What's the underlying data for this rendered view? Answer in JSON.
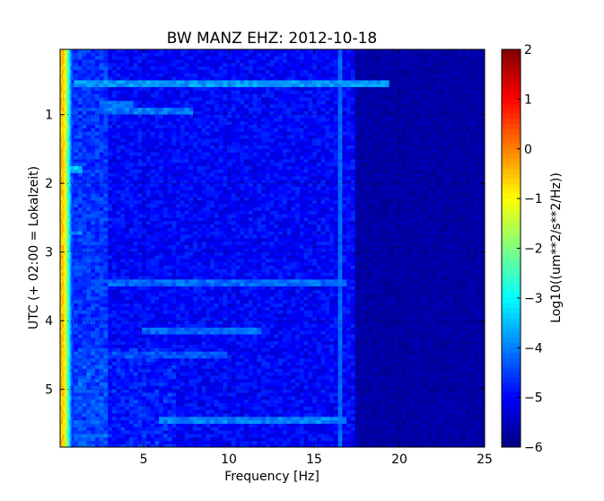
{
  "chart_data": {
    "type": "heatmap",
    "title": "BW MANZ EHZ: 2012-10-18",
    "xlabel": "Frequency [Hz]",
    "ylabel": "UTC (+ 02:00 = Lokalzeit)",
    "colorbar_label": "Log10((um**2/s**2/Hz))",
    "colormap": "jet",
    "xlim": [
      0.1,
      25
    ],
    "ylim": [
      0.05,
      5.84
    ],
    "y_inverted": true,
    "zlim": [
      -6,
      2
    ],
    "grid": true,
    "xticks": [
      5,
      10,
      15,
      20,
      25
    ],
    "xtick_labels": [
      "5",
      "10",
      "15",
      "20",
      "25"
    ],
    "yticks": [
      1,
      2,
      3,
      4,
      5
    ],
    "ytick_labels": [
      "1",
      "2",
      "3",
      "4",
      "5"
    ],
    "cticks": [
      2,
      1,
      0,
      -1,
      -2,
      -3,
      -4,
      -5,
      -6
    ],
    "ctick_labels": [
      "2",
      "1",
      "0",
      "−1",
      "−2",
      "−3",
      "−4",
      "−5",
      "−6"
    ],
    "bin_hz": 0.25,
    "bin_hours": 0.05,
    "background_level_by_band": [
      {
        "f_min": 0.0,
        "f_max": 0.3,
        "level": -0.6
      },
      {
        "f_min": 0.3,
        "f_max": 0.5,
        "level": -1.8
      },
      {
        "f_min": 0.5,
        "f_max": 0.8,
        "level": -3.6
      },
      {
        "f_min": 0.8,
        "f_max": 3.0,
        "level": -4.6
      },
      {
        "f_min": 3.0,
        "f_max": 17.5,
        "level": -5.0
      },
      {
        "f_min": 17.5,
        "f_max": 25.0,
        "level": -5.7
      }
    ],
    "constant_lines": [
      {
        "freq_hz": 16.6,
        "level": -4.2
      }
    ],
    "events": [
      {
        "time_h": 0.55,
        "f_min": 1.0,
        "f_max": 19.5,
        "level": -3.8
      },
      {
        "time_h": 0.85,
        "f_min": 2.5,
        "f_max": 4.5,
        "level": -4.0
      },
      {
        "time_h": 0.95,
        "f_min": 2.5,
        "f_max": 8.0,
        "level": -4.1
      },
      {
        "time_h": 1.8,
        "f_min": 0.5,
        "f_max": 1.5,
        "level": -3.5
      },
      {
        "time_h": 2.72,
        "f_min": 0.5,
        "f_max": 1.5,
        "level": -3.8
      },
      {
        "time_h": 3.45,
        "f_min": 3.0,
        "f_max": 17.0,
        "level": -4.2
      },
      {
        "time_h": 4.15,
        "f_min": 5.0,
        "f_max": 12.0,
        "level": -4.2
      },
      {
        "time_h": 4.5,
        "f_min": 3.0,
        "f_max": 10.0,
        "level": -4.4
      },
      {
        "time_h": 5.45,
        "f_min": 6.0,
        "f_max": 17.0,
        "level": -4.0
      }
    ]
  }
}
